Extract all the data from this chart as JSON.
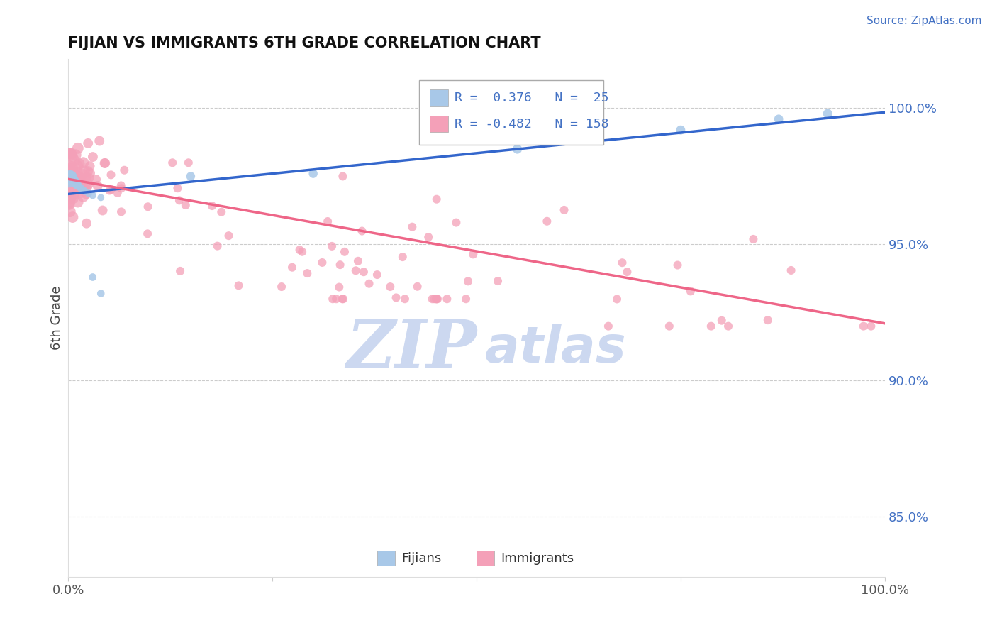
{
  "title": "FIJIAN VS IMMIGRANTS 6TH GRADE CORRELATION CHART",
  "source_text": "Source: ZipAtlas.com",
  "ylabel": "6th Grade",
  "ytick_labels": [
    "85.0%",
    "90.0%",
    "95.0%",
    "100.0%"
  ],
  "ytick_values": [
    0.85,
    0.9,
    0.95,
    1.0
  ],
  "xlim": [
    0.0,
    1.0
  ],
  "ylim": [
    0.828,
    1.018
  ],
  "legend_r_fijian": "0.376",
  "legend_n_fijian": "25",
  "legend_r_immigrant": "-0.482",
  "legend_n_immigrant": "158",
  "fijian_color": "#a8c8e8",
  "immigrant_color": "#f4a0b8",
  "fijian_line_color": "#3366cc",
  "immigrant_line_color": "#ee6688",
  "watermark_color": "#ccd8f0",
  "fijians_label": "Fijians",
  "immigrants_label": "Immigrants",
  "fijian_line_x0": 0.0,
  "fijian_line_y0": 0.9685,
  "fijian_line_x1": 1.0,
  "fijian_line_y1": 0.9985,
  "imm_line_x0": 0.0,
  "imm_line_y0": 0.974,
  "imm_line_x1": 1.0,
  "imm_line_y1": 0.921
}
